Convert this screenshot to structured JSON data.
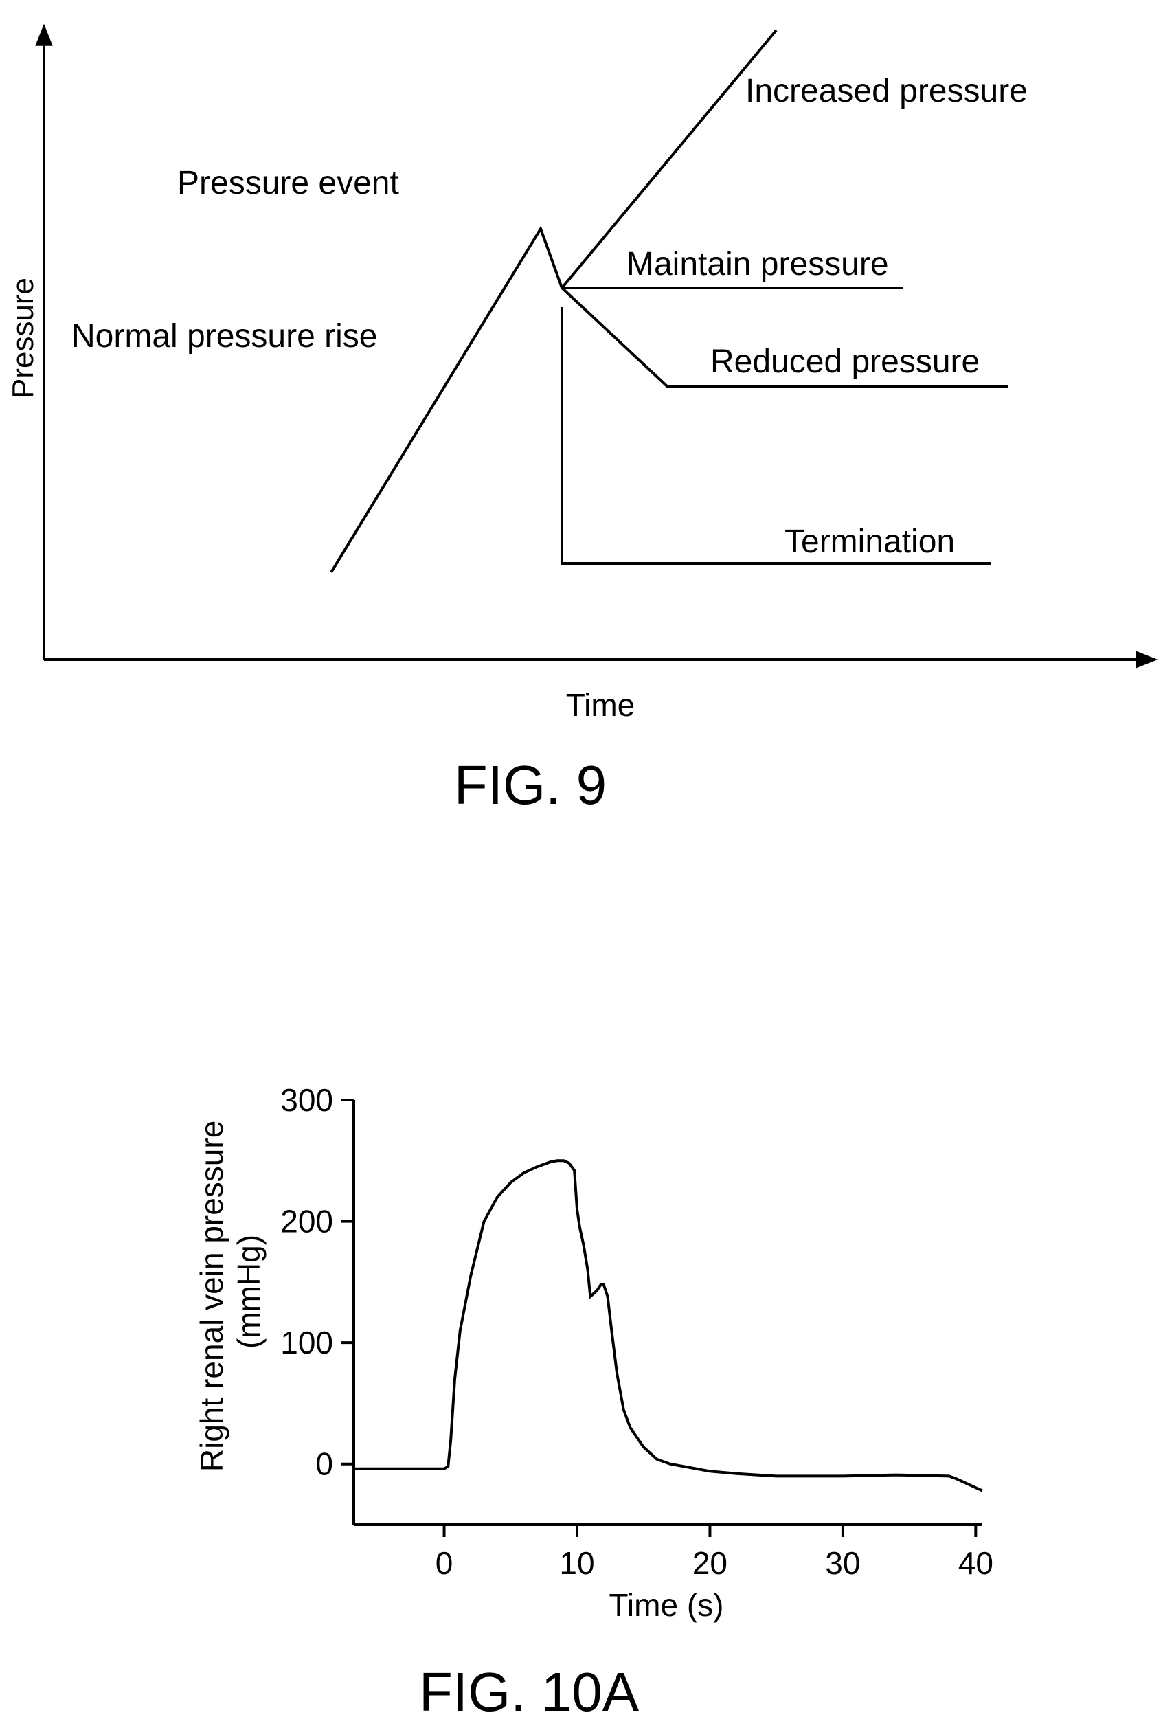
{
  "chart_data": [
    {
      "type": "line",
      "xlabel": "Time",
      "ylabel": "Pressure",
      "caption": "FIG. 9",
      "annotations": {
        "pressure_event": "Pressure event",
        "normal_rise": "Normal pressure rise",
        "increased": "Increased pressure",
        "maintain": "Maintain pressure",
        "reduced": "Reduced pressure",
        "termination": "Termination"
      },
      "series": [
        {
          "values": [
            [
              0.275,
              0.15
            ],
            [
              0.465,
              0.75
            ],
            [
              0.485,
              0.65
            ],
            [
              0.515,
              0.65
            ]
          ]
        }
      ]
    },
    {
      "type": "line",
      "xlabel": "Time (s)",
      "ylabel": "Right renal vein pressure (mmHg)",
      "caption": "FIG. 10A",
      "xlim": [
        -6.8,
        40.5
      ],
      "ylim": [
        -50,
        300
      ],
      "xticks": [
        0,
        10,
        20,
        30,
        40
      ],
      "yticks": [
        0,
        100,
        200,
        300
      ],
      "xtick_labels": [
        "0",
        "10",
        "20",
        "30",
        "40"
      ],
      "ytick_labels": [
        "0",
        "100",
        "200",
        "300"
      ],
      "series": [
        {
          "x": [
            -6.8,
            0.0,
            0.3,
            0.5,
            0.8,
            1.2,
            2.0,
            3.0,
            4.0,
            5.0,
            6.0,
            7.0,
            8.0,
            8.5,
            9.0,
            9.4,
            9.8,
            10.0,
            10.2,
            10.5,
            10.8,
            11.0,
            11.2,
            11.5,
            11.8,
            12.0,
            12.3,
            12.6,
            13.0,
            13.5,
            14.0,
            15.0,
            16.0,
            17.0,
            18.0,
            20.0,
            22.0,
            25.0,
            30.0,
            34.0,
            38.0,
            38.5,
            40.5
          ],
          "y": [
            -4,
            -4,
            -2,
            20,
            70,
            110,
            155,
            200,
            220,
            232,
            240,
            245,
            249,
            250,
            250,
            248,
            242,
            210,
            195,
            180,
            160,
            138,
            140,
            143,
            148,
            148,
            138,
            110,
            75,
            45,
            30,
            14,
            4,
            0,
            -2,
            -6,
            -8,
            -10,
            -10,
            -9,
            -10,
            -12,
            -22
          ]
        }
      ]
    }
  ]
}
